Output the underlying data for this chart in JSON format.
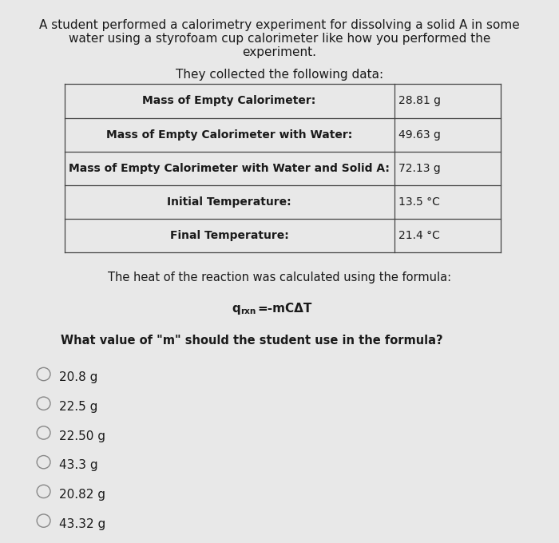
{
  "background_color": "#e8e8e8",
  "title_line1": "A student performed a calorimetry experiment for dissolving a solid A in some",
  "title_line2": "water using a styrofoam cup calorimeter like how you performed the",
  "title_line3": "experiment.",
  "data_intro": "They collected the following data:",
  "table_rows": [
    [
      "Mass of Empty Calorimeter:",
      "28.81 g"
    ],
    [
      "Mass of Empty Calorimeter with Water:",
      "49.63 g"
    ],
    [
      "Mass of Empty Calorimeter with Water and Solid A:",
      "72.13 g"
    ],
    [
      "Initial Temperature:",
      "13.5 °C"
    ],
    [
      "Final Temperature:",
      "21.4 °C"
    ]
  ],
  "formula_intro": "The heat of the reaction was calculated using the formula:",
  "formula_main": "=-mCΔT",
  "formula_q": "q",
  "formula_sub": "rxn",
  "question": "What value of \"m\" should the student use in the formula?",
  "choices": [
    "20.8 g",
    "22.5 g",
    "22.50 g",
    "43.3 g",
    "20.82 g",
    "43.32 g"
  ],
  "text_color": "#1a1a1a",
  "table_border_color": "#444444",
  "table_bg": "#ffffff"
}
